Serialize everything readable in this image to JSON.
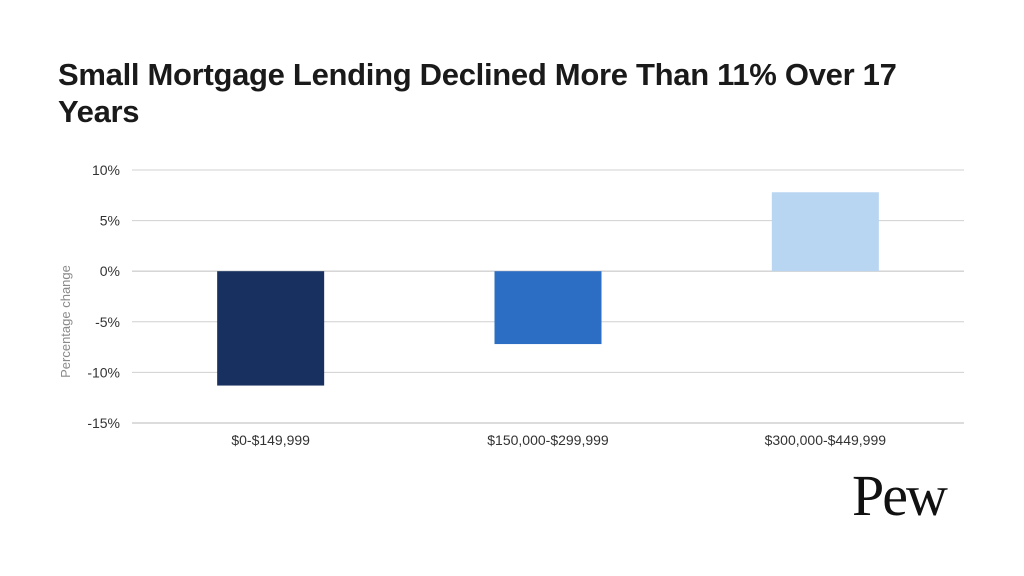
{
  "title": "Small Mortgage Lending Declined More Than 11% Over 17 Years",
  "logo_text": "Pew",
  "chart_data": {
    "type": "bar",
    "title": "Small Mortgage Lending Declined More Than 11% Over 17 Years",
    "xlabel": "",
    "ylabel": "Percentage change",
    "categories": [
      "$0-$149,999",
      "$150,000-$299,999",
      "$300,000-$449,999"
    ],
    "values": [
      -11.3,
      -7.2,
      7.8
    ],
    "colors": [
      "#17305f",
      "#2c6ec4",
      "#b8d5f1"
    ],
    "ylim": [
      -15,
      10
    ],
    "yticks": [
      10,
      5,
      0,
      -5,
      -10,
      -15
    ],
    "ytick_labels": [
      "10%",
      "5%",
      "0%",
      "-5%",
      "-10%",
      "-15%"
    ],
    "grid": true,
    "gridline_color": "#d0d0d0",
    "legend": "none"
  }
}
